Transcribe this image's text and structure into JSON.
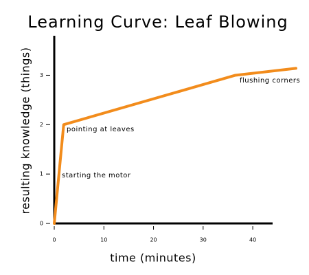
{
  "chart_data": {
    "type": "line",
    "title": "Learning Curve: Leaf Blowing",
    "x_label": "time (minutes)",
    "y_label": "resulting knowledge (things)",
    "x": [
      0,
      1.9,
      36.5,
      48.7
    ],
    "series": [
      {
        "color": "#f28c1c",
        "values": [
          0,
          2,
          3,
          3.14
        ]
      }
    ],
    "annotations": [
      "starting the motor",
      "pointing at leaves",
      "flushing corners"
    ],
    "xlim": [
      0,
      44
    ],
    "xticks": [
      0,
      10,
      20,
      30,
      40
    ],
    "ylim": [
      0,
      3.8
    ],
    "yticks": [
      0,
      1,
      2,
      3
    ]
  }
}
